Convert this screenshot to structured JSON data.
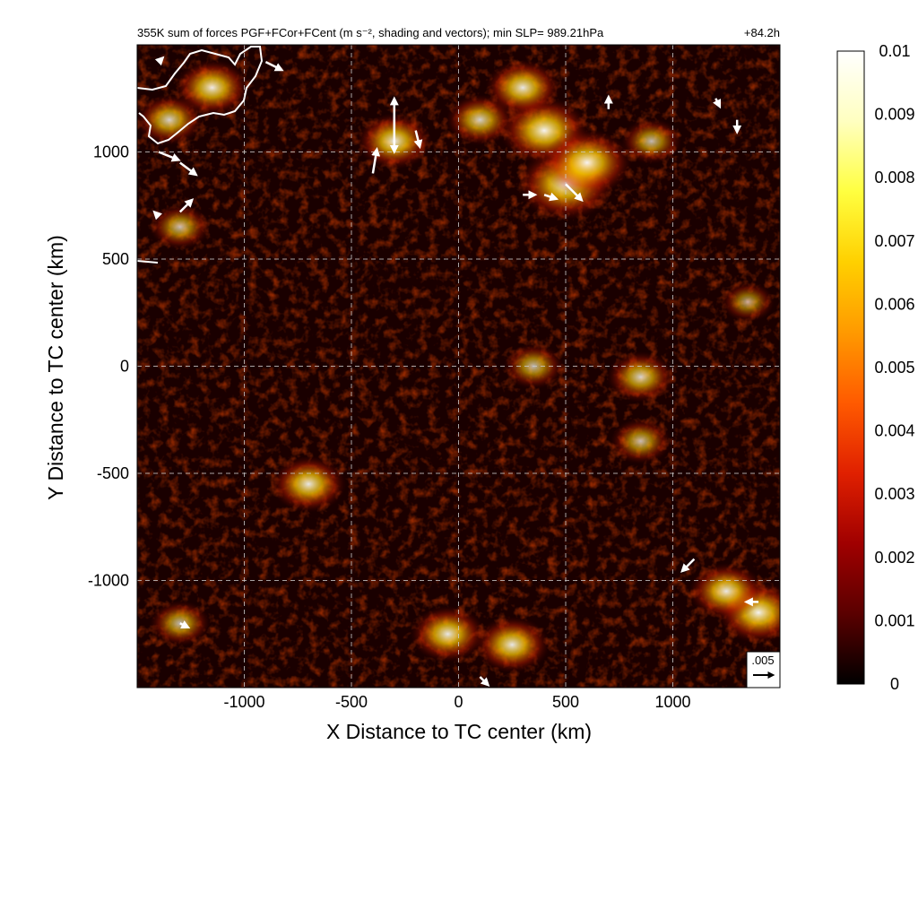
{
  "chart_data": {
    "type": "heatmap",
    "title": "355K sum of forces PGF+FCor+FCent (m s⁻², shading and vectors); min SLP= 989.21hPa",
    "valid_time": "+84.2h",
    "xlabel": "X Distance to TC center (km)",
    "ylabel": "Y Distance to TC center (km)",
    "xlim": [
      -1500,
      1500
    ],
    "ylim": [
      -1500,
      1500
    ],
    "x_ticks": [
      -1000,
      -500,
      0,
      500,
      1000
    ],
    "y_ticks": [
      -1000,
      -500,
      0,
      500,
      1000
    ],
    "grid": true,
    "colorbar": {
      "ticks": [
        "0",
        "0.001",
        "0.002",
        "0.003",
        "0.004",
        "0.005",
        "0.006",
        "0.007",
        "0.008",
        "0.009",
        "0.01"
      ],
      "range": [
        0,
        0.01
      ],
      "colormap": [
        "#000000",
        "#5a0000",
        "#a00000",
        "#e02000",
        "#ff5a00",
        "#ff9a00",
        "#ffd000",
        "#ffff40",
        "#ffffc0",
        "#ffffff"
      ]
    },
    "reference_vector": {
      "label": ".005",
      "magnitude": 0.005
    },
    "hotspots": [
      {
        "x": 500,
        "y": 850,
        "value": 0.009
      },
      {
        "x": 400,
        "y": 1100,
        "value": 0.008
      },
      {
        "x": 600,
        "y": 950,
        "value": 0.008
      },
      {
        "x": 300,
        "y": 1300,
        "value": 0.006
      },
      {
        "x": -300,
        "y": 1050,
        "value": 0.006
      },
      {
        "x": -1150,
        "y": 1300,
        "value": 0.006
      },
      {
        "x": -1350,
        "y": 1150,
        "value": 0.005
      },
      {
        "x": 100,
        "y": 1150,
        "value": 0.005
      },
      {
        "x": 900,
        "y": 1050,
        "value": 0.004
      },
      {
        "x": -700,
        "y": -550,
        "value": 0.006
      },
      {
        "x": 250,
        "y": -1300,
        "value": 0.006
      },
      {
        "x": -50,
        "y": -1250,
        "value": 0.006
      },
      {
        "x": 1400,
        "y": -1150,
        "value": 0.007
      },
      {
        "x": 1250,
        "y": -1050,
        "value": 0.006
      },
      {
        "x": 850,
        "y": -50,
        "value": 0.005
      },
      {
        "x": 850,
        "y": -350,
        "value": 0.004
      },
      {
        "x": -1300,
        "y": 650,
        "value": 0.004
      },
      {
        "x": 1350,
        "y": 300,
        "value": 0.003
      },
      {
        "x": -1300,
        "y": -1200,
        "value": 0.004
      },
      {
        "x": 350,
        "y": 0,
        "value": 0.004
      }
    ],
    "vectors": [
      {
        "x": -1400,
        "y": 1420,
        "u": 0.001,
        "v": 0.001
      },
      {
        "x": -900,
        "y": 1420,
        "u": 0.004,
        "v": -0.002
      },
      {
        "x": -300,
        "y": 1150,
        "u": 0.0,
        "v": -0.008
      },
      {
        "x": -300,
        "y": 1100,
        "u": 0.0,
        "v": 0.008
      },
      {
        "x": -200,
        "y": 1100,
        "u": 0.001,
        "v": -0.004
      },
      {
        "x": -400,
        "y": 900,
        "u": 0.001,
        "v": 0.006
      },
      {
        "x": -1400,
        "y": 1000,
        "u": 0.005,
        "v": -0.002
      },
      {
        "x": -1300,
        "y": 950,
        "u": 0.004,
        "v": -0.003
      },
      {
        "x": -1300,
        "y": 720,
        "u": 0.003,
        "v": 0.003
      },
      {
        "x": -1400,
        "y": 700,
        "u": -0.001,
        "v": 0.001
      },
      {
        "x": 500,
        "y": 850,
        "u": 0.004,
        "v": -0.004
      },
      {
        "x": 400,
        "y": 800,
        "u": 0.003,
        "v": -0.001
      },
      {
        "x": 300,
        "y": 800,
        "u": 0.003,
        "v": 0.0
      },
      {
        "x": 700,
        "y": 1200,
        "u": 0.0,
        "v": 0.003
      },
      {
        "x": 1300,
        "y": 1150,
        "u": 0.0,
        "v": -0.003
      },
      {
        "x": 1200,
        "y": 1250,
        "u": 0.001,
        "v": -0.002
      },
      {
        "x": 1100,
        "y": -900,
        "u": -0.003,
        "v": -0.003
      },
      {
        "x": 1400,
        "y": -1100,
        "u": -0.003,
        "v": 0.0
      },
      {
        "x": 100,
        "y": -1450,
        "u": 0.002,
        "v": -0.002
      },
      {
        "x": -1300,
        "y": -1200,
        "u": 0.002,
        "v": -0.001
      }
    ]
  }
}
